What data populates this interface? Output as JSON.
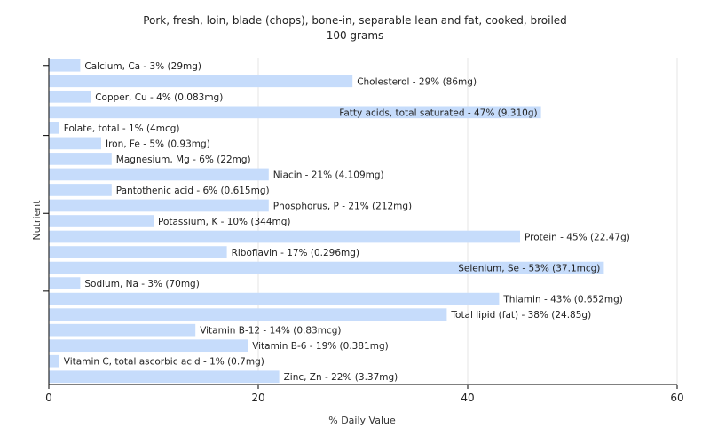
{
  "chart_data": {
    "type": "bar",
    "orientation": "horizontal",
    "title": "Pork, fresh, loin, blade (chops), bone-in, separable lean and fat, cooked, broiled",
    "subtitle": "100 grams",
    "xlabel": "% Daily Value",
    "ylabel": "Nutrient",
    "xlim": [
      0,
      60
    ],
    "xticks": [
      0,
      20,
      40,
      60
    ],
    "grid": true,
    "bar_color": "#c6dcfb",
    "categories": [
      "Calcium, Ca",
      "Cholesterol",
      "Copper, Cu",
      "Fatty acids, total saturated",
      "Folate, total",
      "Iron, Fe",
      "Magnesium, Mg",
      "Niacin",
      "Pantothenic acid",
      "Phosphorus, P",
      "Potassium, K",
      "Protein",
      "Riboflavin",
      "Selenium, Se",
      "Sodium, Na",
      "Thiamin",
      "Total lipid (fat)",
      "Vitamin B-12",
      "Vitamin B-6",
      "Vitamin C, total ascorbic acid",
      "Zinc, Zn"
    ],
    "values": [
      3,
      29,
      4,
      47,
      1,
      5,
      6,
      21,
      6,
      21,
      10,
      45,
      17,
      53,
      3,
      43,
      38,
      14,
      19,
      1,
      22
    ],
    "labels": [
      "Calcium, Ca - 3% (29mg)",
      "Cholesterol - 29% (86mg)",
      "Copper, Cu - 4% (0.083mg)",
      "Fatty acids, total saturated - 47% (9.310g)",
      "Folate, total - 1% (4mcg)",
      "Iron, Fe - 5% (0.93mg)",
      "Magnesium, Mg - 6% (22mg)",
      "Niacin - 21% (4.109mg)",
      "Pantothenic acid - 6% (0.615mg)",
      "Phosphorus, P - 21% (212mg)",
      "Potassium, K - 10% (344mg)",
      "Protein - 45% (22.47g)",
      "Riboflavin - 17% (0.296mg)",
      "Selenium, Se - 53% (37.1mcg)",
      "Sodium, Na - 3% (70mg)",
      "Thiamin - 43% (0.652mg)",
      "Total lipid (fat) - 38% (24.85g)",
      "Vitamin B-12 - 14% (0.83mcg)",
      "Vitamin B-6 - 19% (0.381mg)",
      "Vitamin C, total ascorbic acid - 1% (0.7mg)",
      "Zinc, Zn - 22% (3.37mg)"
    ]
  }
}
